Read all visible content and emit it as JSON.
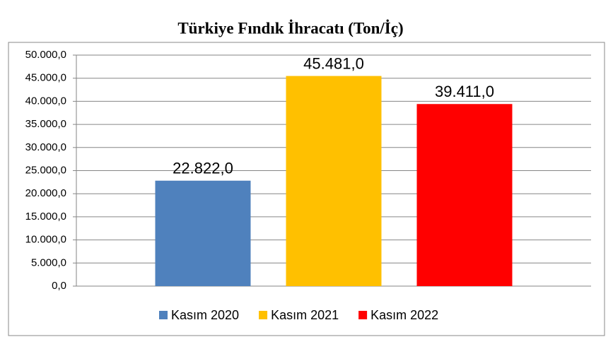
{
  "chart_data": {
    "type": "bar",
    "title": "Türkiye Fındık İhracatı (Ton/İç)",
    "categories": [
      null
    ],
    "series": [
      {
        "name": "Kasım 2020",
        "color": "#4f81bd",
        "values": [
          22822
        ],
        "value_labels": [
          "22.822,0"
        ]
      },
      {
        "name": "Kasım 2021",
        "color": "#ffc000",
        "values": [
          45481
        ],
        "value_labels": [
          "45.481,0"
        ]
      },
      {
        "name": "Kasım 2022",
        "color": "#ff0000",
        "values": [
          39411
        ],
        "value_labels": [
          "39.411,0"
        ]
      }
    ],
    "ylim": [
      0,
      50000
    ],
    "yticks": [
      {
        "value": 0,
        "label": "0,0"
      },
      {
        "value": 5000,
        "label": "5.000,0"
      },
      {
        "value": 10000,
        "label": "10.000,0"
      },
      {
        "value": 15000,
        "label": "15.000,0"
      },
      {
        "value": 20000,
        "label": "20.000,0"
      },
      {
        "value": 25000,
        "label": "25.000,0"
      },
      {
        "value": 30000,
        "label": "30.000,0"
      },
      {
        "value": 35000,
        "label": "35.000,0"
      },
      {
        "value": 40000,
        "label": "40.000,0"
      },
      {
        "value": 45000,
        "label": "45.000,0"
      },
      {
        "value": 50000,
        "label": "50.000,0"
      }
    ],
    "grid": true,
    "legend": "bottom"
  }
}
